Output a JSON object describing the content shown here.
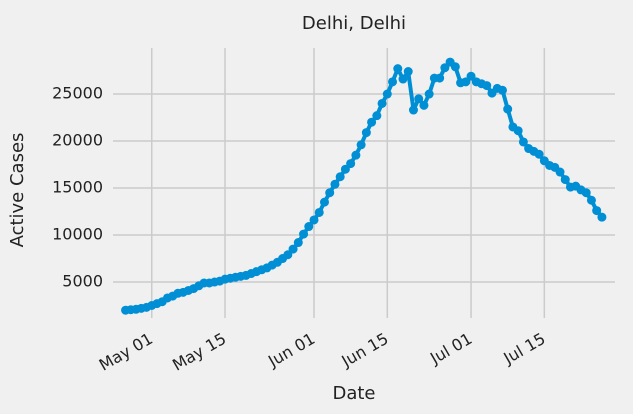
{
  "chart_data": {
    "type": "line",
    "title": "Delhi, Delhi",
    "x_label": "Date",
    "y_label": "Active Cases",
    "x": [
      "Apr 26",
      "Apr 27",
      "Apr 28",
      "Apr 29",
      "Apr 30",
      "May 01",
      "May 02",
      "May 03",
      "May 04",
      "May 05",
      "May 06",
      "May 07",
      "May 08",
      "May 09",
      "May 10",
      "May 11",
      "May 12",
      "May 13",
      "May 14",
      "May 15",
      "May 16",
      "May 17",
      "May 18",
      "May 19",
      "May 20",
      "May 21",
      "May 22",
      "May 23",
      "May 24",
      "May 25",
      "May 26",
      "May 27",
      "May 28",
      "May 29",
      "May 30",
      "May 31",
      "Jun 01",
      "Jun 02",
      "Jun 03",
      "Jun 04",
      "Jun 05",
      "Jun 06",
      "Jun 07",
      "Jun 08",
      "Jun 09",
      "Jun 10",
      "Jun 11",
      "Jun 12",
      "Jun 13",
      "Jun 14",
      "Jun 15",
      "Jun 16",
      "Jun 17",
      "Jun 18",
      "Jun 19",
      "Jun 20",
      "Jun 21",
      "Jun 22",
      "Jun 23",
      "Jun 24",
      "Jun 25",
      "Jun 26",
      "Jun 27",
      "Jun 28",
      "Jun 29",
      "Jun 30",
      "Jul 01",
      "Jul 02",
      "Jul 03",
      "Jul 04",
      "Jul 05",
      "Jul 06",
      "Jul 07",
      "Jul 08",
      "Jul 09",
      "Jul 10",
      "Jul 11",
      "Jul 12",
      "Jul 13",
      "Jul 14",
      "Jul 15",
      "Jul 16",
      "Jul 17",
      "Jul 18",
      "Jul 19",
      "Jul 20",
      "Jul 21",
      "Jul 22",
      "Jul 23",
      "Jul 24",
      "Jul 25",
      "Jul 26"
    ],
    "values": [
      2000,
      2050,
      2100,
      2200,
      2300,
      2500,
      2700,
      2900,
      3300,
      3500,
      3800,
      3900,
      4100,
      4300,
      4600,
      4900,
      4900,
      5000,
      5100,
      5300,
      5400,
      5500,
      5600,
      5700,
      5900,
      6100,
      6300,
      6500,
      6800,
      7100,
      7500,
      7900,
      8500,
      9200,
      10100,
      10900,
      11600,
      12400,
      13500,
      14500,
      15400,
      16200,
      17000,
      17600,
      18500,
      19600,
      20900,
      22000,
      22700,
      24000,
      25000,
      26300,
      27700,
      26600,
      27400,
      23300,
      24500,
      23800,
      25000,
      26700,
      26700,
      27800,
      28400,
      27900,
      26200,
      26300,
      26900,
      26300,
      26100,
      25900,
      25100,
      25600,
      25400,
      23400,
      21500,
      21100,
      19900,
      19200,
      18900,
      18600,
      17900,
      17400,
      17200,
      16700,
      15900,
      15100,
      15200,
      14800,
      14500,
      13700,
      12600,
      11900
    ],
    "color": "#008fd5",
    "xticks": [
      "May 01",
      "May 15",
      "Jun 01",
      "Jun 15",
      "Jul 01",
      "Jul 15"
    ],
    "ylim": [
      1170,
      29900
    ],
    "yticks": [
      5000,
      10000,
      15000,
      20000,
      25000
    ],
    "grid": true
  }
}
